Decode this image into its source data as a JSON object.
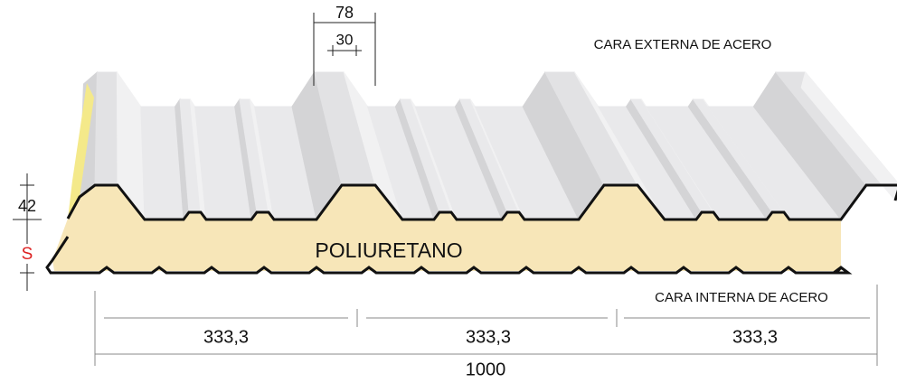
{
  "diagram": {
    "top_rib_width": "78",
    "top_rib_flat": "30",
    "external_face": "CARA EXTERNA DE ACERO",
    "rib_height": "42",
    "thickness": "S",
    "core": "POLIURETANO",
    "internal_face": "CARA INTERNA DE ACERO",
    "segments": [
      "333,3",
      "333,3",
      "333,3"
    ],
    "total_width": "1000"
  }
}
